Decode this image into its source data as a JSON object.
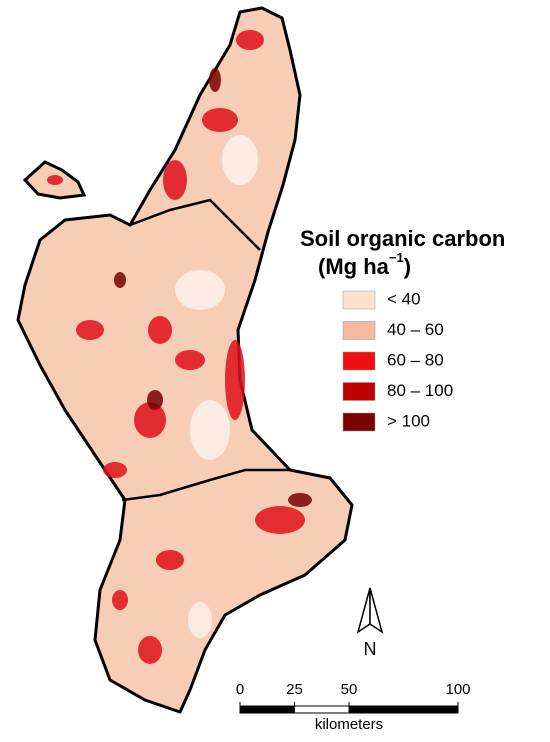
{
  "legend": {
    "title": "Soil organic carbon",
    "units": {
      "open": "(Mg ha",
      "superscript": "−1",
      "close": ")"
    },
    "items": [
      {
        "label": "< 40",
        "color": "#fde3cf"
      },
      {
        "label": "40 – 60",
        "color": "#f6b9a0"
      },
      {
        "label": "60 – 80",
        "color": "#f00f0f"
      },
      {
        "label": "80 – 100",
        "color": "#c00000"
      },
      {
        "label": "> 100",
        "color": "#7a0000"
      }
    ]
  },
  "north_arrow": {
    "label": "N"
  },
  "scale_bar": {
    "ticks": [
      0,
      25,
      50,
      100
    ],
    "unit": "kilometers"
  }
}
